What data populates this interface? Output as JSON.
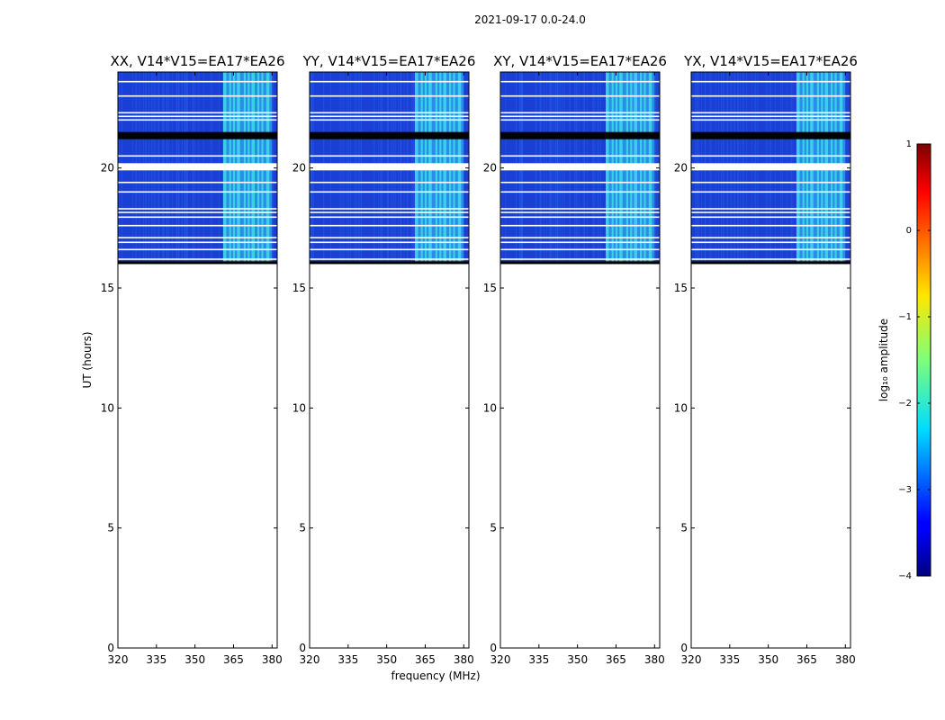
{
  "chart_data": {
    "type": "heatmap",
    "suptitle": "2021-09-17 0.0-24.0",
    "xlabel": "frequency (MHz)",
    "ylabel": "UT (hours)",
    "xlim": [
      320,
      382
    ],
    "ylim": [
      0,
      24
    ],
    "xticks": [
      320,
      335,
      350,
      365,
      380
    ],
    "yticks": [
      0,
      5,
      10,
      15,
      20
    ],
    "data_start_hours": 16.0,
    "data_end_hours": 24.0,
    "bright_band_mhz": [
      361,
      380
    ],
    "gap_rows_hours": [
      16.2,
      16.6,
      16.9,
      17.1,
      17.6,
      17.95,
      18.15,
      18.3,
      19.0,
      19.4,
      20.5,
      22.0,
      22.15,
      22.3,
      23.0,
      23.6
    ],
    "blank_band_hours": [
      19.9,
      20.2
    ],
    "dark_band_hours": [
      21.2,
      21.5
    ],
    "panels": [
      {
        "title": "XX, V14*V15=EA17*EA26"
      },
      {
        "title": "YY, V14*V15=EA17*EA26"
      },
      {
        "title": "XY, V14*V15=EA17*EA26"
      },
      {
        "title": "YX, V14*V15=EA17*EA26"
      }
    ],
    "colorbar": {
      "label": "log₁₀ amplitude",
      "range": [
        -4,
        1
      ],
      "ticks": [
        "1",
        "0",
        "−1",
        "−2",
        "−3",
        "−4"
      ],
      "colormap": "jet"
    }
  }
}
